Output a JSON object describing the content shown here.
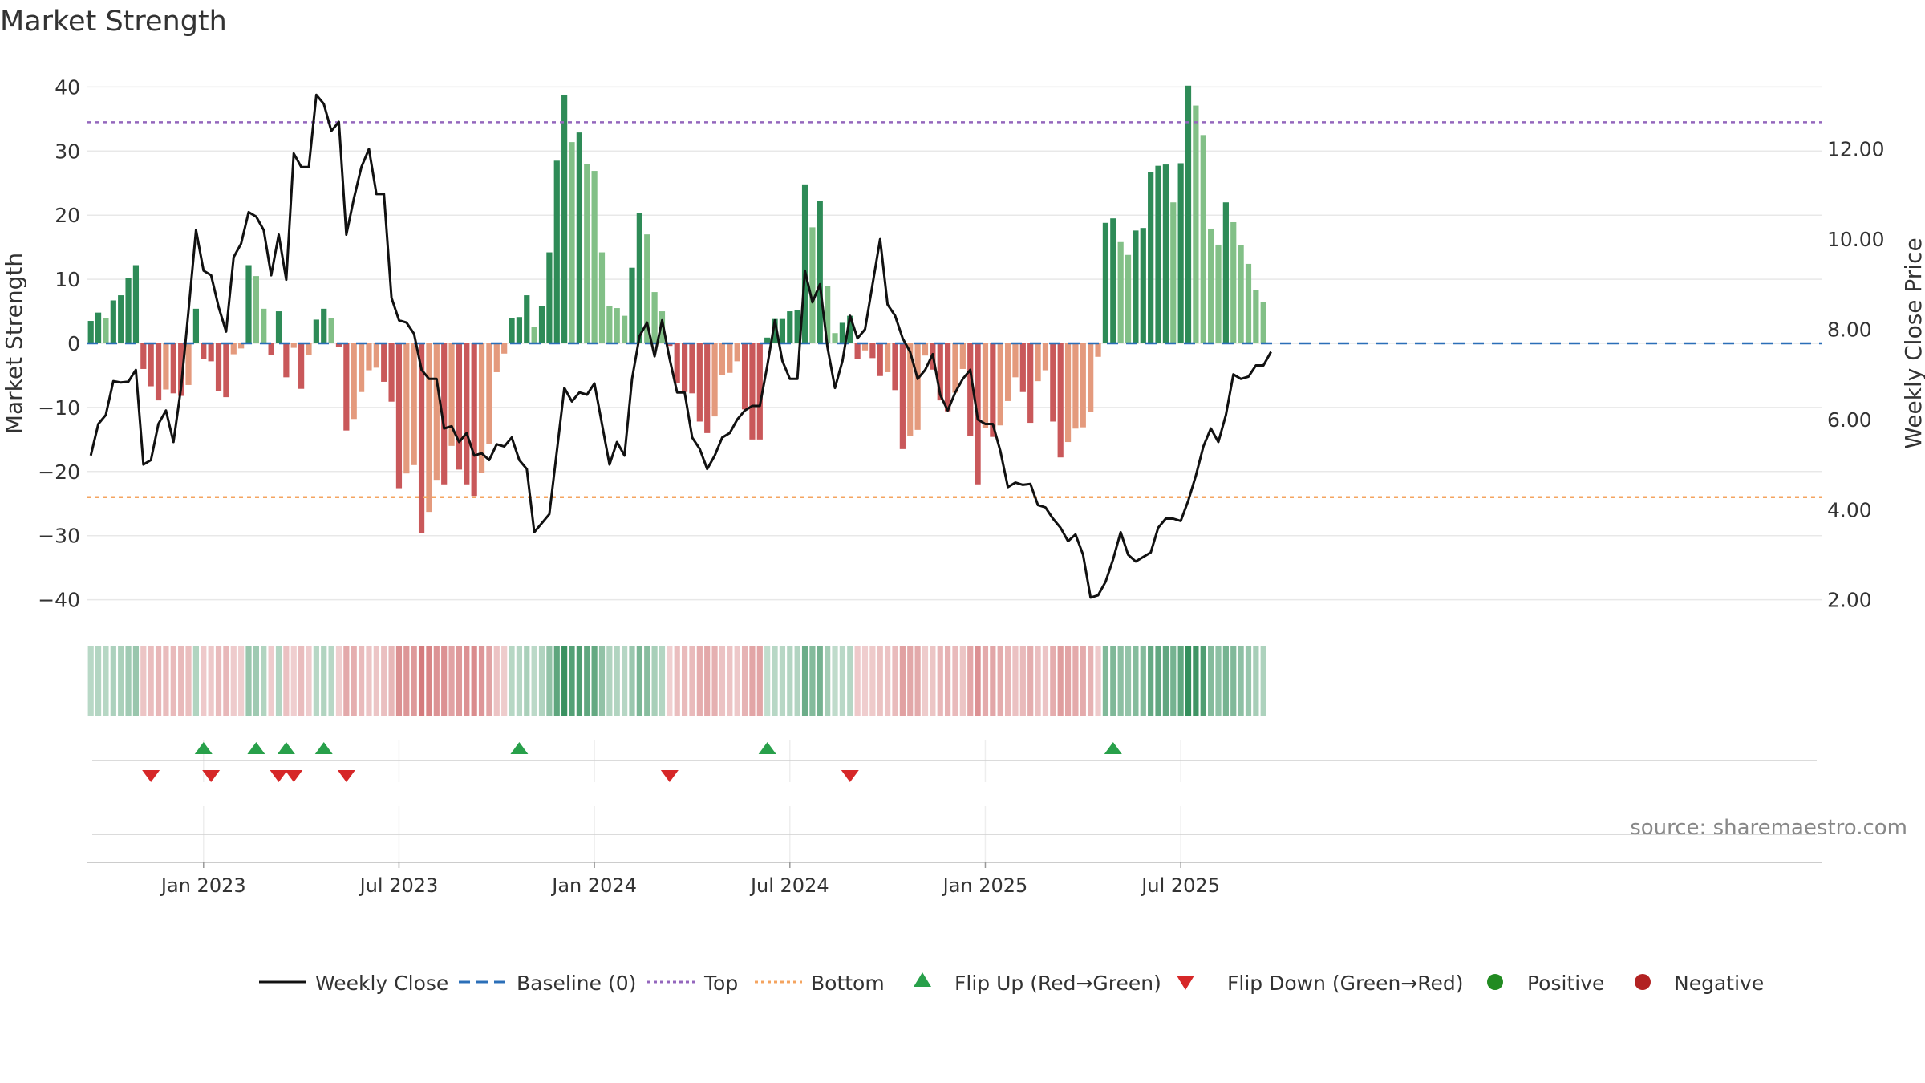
{
  "chart_data": {
    "type": "bar",
    "title": "Market Strength",
    "ylabel": "Market Strength",
    "y2label": "Weekly Close Price",
    "ylim": [
      -42,
      44
    ],
    "y2lim": [
      1.4,
      13.4
    ],
    "y_ticks": [
      40,
      30,
      20,
      10,
      0,
      -10,
      -20,
      -30,
      -40
    ],
    "y_tick_labels": [
      "40",
      "30",
      "20",
      "10",
      "0",
      "−10",
      "−20",
      "−30",
      "−40"
    ],
    "y2_ticks": [
      12,
      10,
      8,
      6,
      4,
      2
    ],
    "y2_tick_labels": [
      "12.00",
      "10.00",
      "8.00",
      "6.00",
      "4.00",
      "2.00"
    ],
    "x_tick_labels": [
      "Jan 2023",
      "Jul 2023",
      "Jan 2024",
      "Jul 2024",
      "Jan 2025",
      "Jul 2025"
    ],
    "x_tick_weeks": [
      15,
      41,
      67,
      93,
      119,
      145
    ],
    "top_line": 34.5,
    "bottom_line": -24,
    "baseline": 0,
    "series": [
      {
        "name": "Market Strength",
        "values": [
          3.5,
          4.8,
          4,
          6.7,
          7.5,
          10.2,
          12.2,
          -4,
          -6.7,
          -8.9,
          -7.2,
          -7.8,
          -8.2,
          -6.5,
          5.4,
          -2.4,
          -2.8,
          -7.5,
          -8.4,
          -1.7,
          -0.8,
          12.2,
          10.5,
          5.4,
          -1.8,
          5,
          -5.3,
          -0.7,
          -7.1,
          -1.8,
          3.7,
          5.4,
          3.9,
          -0.5,
          -13.6,
          -11.8,
          -7.6,
          -4.2,
          -3.8,
          -6,
          -9.1,
          -22.6,
          -20.3,
          -19,
          -29.6,
          -26.3,
          -21.3,
          -22,
          -16,
          -19.7,
          -22,
          -23.8,
          -20.2,
          -15.7,
          -4.5,
          -1.6,
          4,
          4.1,
          7.5,
          2.6,
          5.8,
          14.2,
          28.5,
          38.8,
          31.4,
          32.9,
          28,
          26.9,
          14.2,
          5.8,
          5.5,
          4.3,
          11.8,
          20.4,
          17,
          8,
          5,
          -0.4,
          -6.2,
          -7.6,
          -7.8,
          -12.2,
          -14,
          -11.4,
          -4.9,
          -4.6,
          -2.8,
          -10.3,
          -15,
          -15,
          0.9,
          3.8,
          3.8,
          5,
          5.2,
          24.8,
          18.1,
          22.2,
          8.9,
          1.6,
          3.2,
          4.3,
          -2.5,
          -1.1,
          -2.3,
          -5.1,
          -4.5,
          -7.3,
          -16.5,
          -14.5,
          -13.5,
          -1.9,
          -4.1,
          -8.9,
          -10.6,
          -7.7,
          -4,
          -14.4,
          -22,
          -13.2,
          -14.6,
          -12.8,
          -9,
          -5.3,
          -7.6,
          -12.4,
          -5.9,
          -4.2,
          -12.2,
          -17.8,
          -15.4,
          -13.3,
          -13.1,
          -10.7,
          -2.1,
          18.8,
          19.5,
          15.8,
          13.8,
          17.6,
          18,
          26.7,
          27.7,
          27.9,
          22,
          28.1,
          40.2,
          37.1,
          32.5,
          17.9,
          15.4,
          22,
          18.9,
          15.3,
          12.4,
          8.3,
          6.5
        ]
      },
      {
        "name": "Weekly Close",
        "values": [
          5.2,
          5.9,
          6.1,
          6.85,
          6.82,
          6.84,
          7.1,
          5,
          5.1,
          5.9,
          6.2,
          5.5,
          6.7,
          8.4,
          10.2,
          9.3,
          9.2,
          8.5,
          7.95,
          9.6,
          9.9,
          10.6,
          10.5,
          10.2,
          9.2,
          10.1,
          9.1,
          11.9,
          11.6,
          11.6,
          13.2,
          13,
          12.4,
          12.6,
          10.1,
          10.9,
          11.6,
          12,
          11,
          11,
          8.7,
          8.2,
          8.15,
          7.9,
          7.1,
          6.9,
          6.9,
          5.8,
          5.85,
          5.5,
          5.7,
          5.2,
          5.25,
          5.1,
          5.45,
          5.4,
          5.6,
          5.1,
          4.9,
          3.5,
          3.7,
          3.9,
          5.3,
          6.7,
          6.4,
          6.6,
          6.55,
          6.8,
          5.9,
          5,
          5.5,
          5.2,
          6.9,
          7.85,
          8.15,
          7.4,
          8.2,
          7.35,
          6.6,
          6.6,
          5.6,
          5.35,
          4.9,
          5.2,
          5.6,
          5.7,
          6,
          6.2,
          6.3,
          6.3,
          7.2,
          8.2,
          7.3,
          6.9,
          6.9,
          9.3,
          8.6,
          9,
          7.6,
          6.7,
          7.3,
          8.3,
          7.8,
          8,
          9,
          10,
          8.55,
          8.3,
          7.8,
          7.5,
          6.9,
          7.1,
          7.45,
          6.55,
          6.2,
          6.6,
          6.9,
          7.1,
          6,
          5.9,
          5.9,
          5.3,
          4.5,
          4.6,
          4.55,
          4.57,
          4.1,
          4.05,
          3.8,
          3.6,
          3.3,
          3.45,
          3,
          2.05,
          2.1,
          2.4,
          2.9,
          3.5,
          3,
          2.85,
          2.95,
          3.05,
          3.6,
          3.8,
          3.8,
          3.75,
          4.2,
          4.75,
          5.4,
          5.8,
          5.5,
          6.1,
          7,
          6.9,
          6.95,
          7.2,
          7.2,
          7.5
        ]
      }
    ],
    "flip_up": [
      15,
      22,
      26,
      31,
      57,
      90,
      136
    ],
    "flip_down": [
      8,
      16,
      25,
      27,
      34,
      77,
      101
    ],
    "legend": [
      "Weekly Close",
      "Baseline (0)",
      "Top",
      "Bottom",
      "Flip Up (Red→Green)",
      "Flip Down (Green→Red)",
      "Positive",
      "Negative"
    ],
    "source_note": "source: sharemaestro.com",
    "colors": {
      "pos_dark": "#2e8b57",
      "pos_light": "#82c087",
      "neg_dark": "#c9585a",
      "neg_light": "#e49a7d",
      "line": "#111111",
      "baseline": "#2b6fb8",
      "top": "#9467bd",
      "bottom": "#f4a460",
      "flip_up": "#28a04a",
      "flip_down": "#d62728",
      "positive_dot": "#228b22",
      "negative_dot": "#b22222",
      "grid": "#e8e8e8",
      "axis": "#cccccc"
    }
  }
}
